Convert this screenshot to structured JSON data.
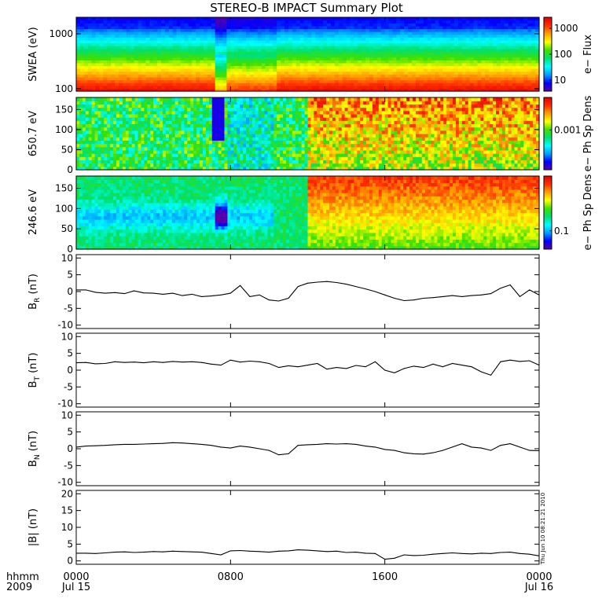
{
  "title": "STEREO-B IMPACT Summary Plot",
  "colors": {
    "background": "#ffffff",
    "line": "#000000",
    "spectrogram_scale": [
      "#5500aa",
      "#0000ff",
      "#00a0ff",
      "#00ffff",
      "#00e070",
      "#40e000",
      "#ffff00",
      "#ffa000",
      "#ff3000",
      "#e00000"
    ]
  },
  "x_axis": {
    "range_hours": [
      0,
      24
    ],
    "ticks": [
      {
        "hour": 0,
        "top": "0000",
        "bottom": "Jul 15"
      },
      {
        "hour": 8,
        "top": "0800",
        "bottom": ""
      },
      {
        "hour": 16,
        "top": "1600",
        "bottom": ""
      },
      {
        "hour": 24,
        "top": "0000",
        "bottom": "Jul 16"
      }
    ],
    "left_label_top": "hhmm",
    "left_label_bottom": "2009"
  },
  "side_note": "Thu Jun 10 08:21:21 2010",
  "chart_data": [
    {
      "type": "heatmap",
      "id": "swea",
      "ylabel": "SWEA (eV)",
      "y_scale": "log",
      "ylim": [
        90,
        2000
      ],
      "y_ticks": [
        {
          "value": 100,
          "label": "100"
        },
        {
          "value": 1000,
          "label": "1000"
        }
      ],
      "colorbar_label": "e− Flux",
      "colorbar_scale": "log",
      "colorbar_ticks": [
        {
          "frac": 0.15,
          "label": "10"
        },
        {
          "frac": 0.5,
          "label": "100"
        },
        {
          "frac": 0.85,
          "label": "1000"
        }
      ],
      "events": [
        {
          "start_hour": 7.3,
          "end_hour": 10.3,
          "effect": "flux depletion at low energies"
        }
      ]
    },
    {
      "type": "heatmap",
      "id": "pad650",
      "ylabel": "650.7 eV",
      "y_axis_name": "pitch angle (deg)",
      "ylim": [
        0,
        180
      ],
      "y_ticks": [
        0,
        50,
        100,
        150
      ],
      "colorbar_label": "e− Ph Sp Dens",
      "colorbar_scale": "log",
      "colorbar_ticks": [
        {
          "frac": 0.55,
          "label": "0.001"
        }
      ],
      "events": [
        {
          "start_hour": 7.1,
          "end_hour": 7.7,
          "effect": "low density near 0 deg"
        },
        {
          "start_hour": 12.0,
          "end_hour": 24.0,
          "effect": "high density near 180 deg"
        }
      ]
    },
    {
      "type": "heatmap",
      "id": "pad246",
      "ylabel": "246.6 eV",
      "y_axis_name": "pitch angle (deg)",
      "ylim": [
        0,
        180
      ],
      "y_ticks": [
        0,
        50,
        100,
        150
      ],
      "colorbar_label": "e− Ph Sp Dens",
      "colorbar_scale": "log",
      "colorbar_ticks": [
        {
          "frac": 0.25,
          "label": "0.1"
        }
      ],
      "events": [
        {
          "start_hour": 7.2,
          "end_hour": 7.8,
          "effect": "strong depletion near 90 deg"
        },
        {
          "start_hour": 0.5,
          "end_hour": 10.3,
          "effect": "blobs of lower density near 90 deg"
        },
        {
          "start_hour": 12.0,
          "end_hour": 24.0,
          "effect": "high density near 180 deg"
        }
      ]
    },
    {
      "type": "line",
      "id": "br",
      "ylabel": "B",
      "ylabel_sub": "R",
      "ylabel_unit": " (nT)",
      "ylim": [
        -11,
        11
      ],
      "y_ticks": [
        -10,
        -5,
        0,
        5,
        10
      ],
      "x": [
        0,
        0.5,
        1,
        1.5,
        2,
        2.5,
        3,
        3.5,
        4,
        4.5,
        5,
        5.5,
        6,
        6.5,
        7,
        7.5,
        8,
        8.5,
        9,
        9.5,
        10,
        10.5,
        11,
        11.5,
        12,
        12.5,
        13,
        13.5,
        14,
        14.5,
        15,
        15.5,
        16,
        16.5,
        17,
        17.5,
        18,
        18.5,
        19,
        19.5,
        20,
        20.5,
        21,
        21.5,
        22,
        22.5,
        23,
        23.5,
        24
      ],
      "values": [
        0.5,
        0.5,
        -0.2,
        -0.5,
        -0.3,
        -0.6,
        0.2,
        -0.4,
        -0.5,
        -0.8,
        -0.5,
        -1.2,
        -0.8,
        -1.5,
        -1.3,
        -1.0,
        -0.5,
        1.8,
        -1.5,
        -1.0,
        -2.5,
        -2.8,
        -2.0,
        1.5,
        2.5,
        2.8,
        3.0,
        2.7,
        2.2,
        1.5,
        0.8,
        0.0,
        -1.0,
        -2.0,
        -2.7,
        -2.5,
        -2.0,
        -1.8,
        -1.5,
        -1.2,
        -1.5,
        -1.2,
        -1.0,
        -0.6,
        1.0,
        2.0,
        -1.5,
        0.5,
        -1.0
      ]
    },
    {
      "type": "line",
      "id": "bt",
      "ylabel": "B",
      "ylabel_sub": "T",
      "ylabel_unit": " (nT)",
      "ylim": [
        -11,
        11
      ],
      "y_ticks": [
        -10,
        -5,
        0,
        5,
        10
      ],
      "x": [
        0,
        0.5,
        1,
        1.5,
        2,
        2.5,
        3,
        3.5,
        4,
        4.5,
        5,
        5.5,
        6,
        6.5,
        7,
        7.5,
        8,
        8.5,
        9,
        9.5,
        10,
        10.5,
        11,
        11.5,
        12,
        12.5,
        13,
        13.5,
        14,
        14.5,
        15,
        15.5,
        16,
        16.5,
        17,
        17.5,
        18,
        18.5,
        19,
        19.5,
        20,
        20.5,
        21,
        21.5,
        22,
        22.5,
        23,
        23.5,
        24
      ],
      "values": [
        2.2,
        2.3,
        1.9,
        2.0,
        2.5,
        2.3,
        2.4,
        2.2,
        2.5,
        2.3,
        2.6,
        2.4,
        2.5,
        2.3,
        1.8,
        1.5,
        3.0,
        2.4,
        2.7,
        2.5,
        2.0,
        0.8,
        1.3,
        1.0,
        1.5,
        2.0,
        0.3,
        0.8,
        0.5,
        1.4,
        1.0,
        2.5,
        0.0,
        -0.8,
        0.5,
        1.2,
        0.8,
        1.8,
        1.0,
        2.0,
        1.5,
        1.0,
        -0.5,
        -1.5,
        2.5,
        3.0,
        2.6,
        2.8,
        1.5
      ]
    },
    {
      "type": "line",
      "id": "bn",
      "ylabel": "B",
      "ylabel_sub": "N",
      "ylabel_unit": " (nT)",
      "ylim": [
        -11,
        11
      ],
      "y_ticks": [
        -10,
        -5,
        0,
        5,
        10
      ],
      "x": [
        0,
        0.5,
        1,
        1.5,
        2,
        2.5,
        3,
        3.5,
        4,
        4.5,
        5,
        5.5,
        6,
        6.5,
        7,
        7.5,
        8,
        8.5,
        9,
        9.5,
        10,
        10.5,
        11,
        11.5,
        12,
        12.5,
        13,
        13.5,
        14,
        14.5,
        15,
        15.5,
        16,
        16.5,
        17,
        17.5,
        18,
        18.5,
        19,
        19.5,
        20,
        20.5,
        21,
        21.5,
        22,
        22.5,
        23,
        23.5,
        24
      ],
      "values": [
        0.5,
        0.8,
        0.9,
        1.0,
        1.2,
        1.3,
        1.3,
        1.4,
        1.5,
        1.6,
        1.8,
        1.7,
        1.5,
        1.3,
        1.0,
        0.5,
        0.2,
        0.8,
        0.5,
        0.0,
        -0.5,
        -1.8,
        -1.5,
        1.0,
        1.2,
        1.3,
        1.5,
        1.4,
        1.5,
        1.3,
        0.8,
        0.5,
        -0.2,
        -0.5,
        -1.2,
        -1.5,
        -1.6,
        -1.2,
        -0.5,
        0.5,
        1.5,
        0.5,
        0.2,
        -0.5,
        1.0,
        1.5,
        0.5,
        -0.5,
        -0.6
      ]
    },
    {
      "type": "line",
      "id": "bmag",
      "ylabel": "|B|",
      "ylabel_sub": "",
      "ylabel_unit": " (nT)",
      "ylim": [
        -1,
        21
      ],
      "y_ticks": [
        0,
        5,
        10,
        15,
        20
      ],
      "x": [
        0,
        0.5,
        1,
        1.5,
        2,
        2.5,
        3,
        3.5,
        4,
        4.5,
        5,
        5.5,
        6,
        6.5,
        7,
        7.5,
        8,
        8.5,
        9,
        9.5,
        10,
        10.5,
        11,
        11.5,
        12,
        12.5,
        13,
        13.5,
        14,
        14.5,
        15,
        15.5,
        16,
        16.5,
        17,
        17.5,
        18,
        18.5,
        19,
        19.5,
        20,
        20.5,
        21,
        21.5,
        22,
        22.5,
        23,
        23.5,
        24
      ],
      "values": [
        2.3,
        2.3,
        2.2,
        2.4,
        2.6,
        2.7,
        2.5,
        2.6,
        2.8,
        2.7,
        2.9,
        2.8,
        2.7,
        2.6,
        2.2,
        1.8,
        3.0,
        3.1,
        2.9,
        2.8,
        2.6,
        2.9,
        3.0,
        3.3,
        3.2,
        3.0,
        2.8,
        2.9,
        2.5,
        2.6,
        2.3,
        2.2,
        0.5,
        0.8,
        1.8,
        1.6,
        1.7,
        2.0,
        2.2,
        2.4,
        2.2,
        2.1,
        2.3,
        2.2,
        2.5,
        2.6,
        2.2,
        2.0,
        1.5
      ]
    }
  ]
}
